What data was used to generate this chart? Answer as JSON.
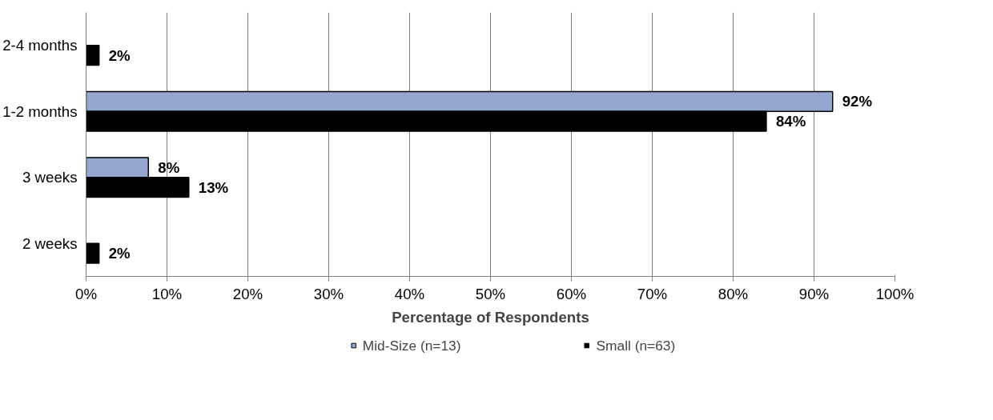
{
  "chart_data": {
    "type": "bar",
    "orientation": "horizontal",
    "xlabel": "Percentage of Respondents",
    "categories": [
      "2-4 months",
      "1-2 months",
      "3 weeks",
      "2 weeks"
    ],
    "series": [
      {
        "name": "Mid-Size (n=13)",
        "color": "#95a9d0",
        "values": [
          null,
          92.3,
          7.7,
          null
        ],
        "value_labels": [
          null,
          "92%",
          "8%",
          null
        ]
      },
      {
        "name": "Small (n=63)",
        "color": "#000000",
        "values": [
          1.6,
          84.1,
          12.7,
          1.6
        ],
        "value_labels": [
          "2%",
          "84%",
          "13%",
          "2%"
        ]
      }
    ],
    "xlim": [
      0,
      100
    ],
    "xticks": [
      {
        "value": 0,
        "label": "0%"
      },
      {
        "value": 10,
        "label": "10%"
      },
      {
        "value": 20,
        "label": "20%"
      },
      {
        "value": 30,
        "label": "30%"
      },
      {
        "value": 40,
        "label": "40%"
      },
      {
        "value": 50,
        "label": "50%"
      },
      {
        "value": 60,
        "label": "60%"
      },
      {
        "value": 70,
        "label": "70%"
      },
      {
        "value": 80,
        "label": "80%"
      },
      {
        "value": 90,
        "label": "90%"
      },
      {
        "value": 100,
        "label": "100%"
      }
    ],
    "grid": "x",
    "legend": "bottom"
  }
}
